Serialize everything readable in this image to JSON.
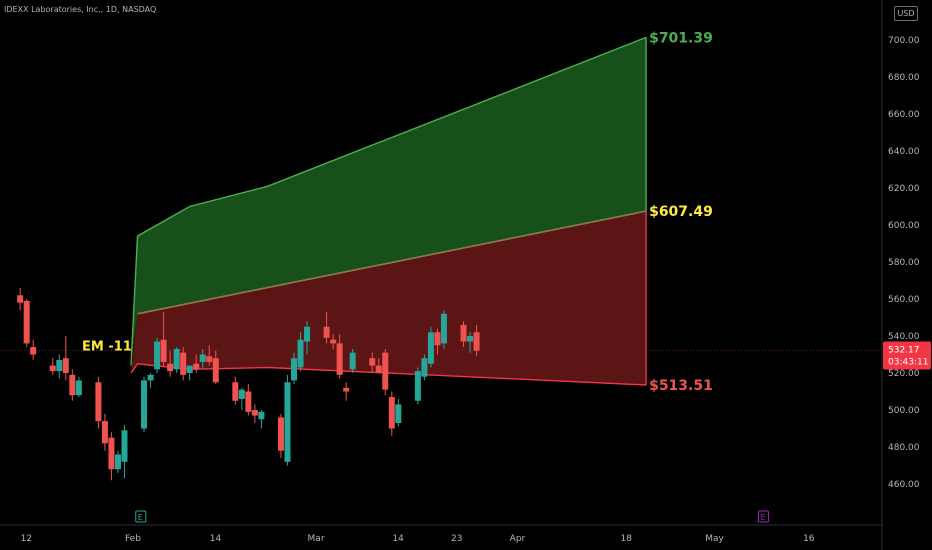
{
  "header": {
    "title": "IDEXX Laboratories, Inc., 1D, NASDAQ"
  },
  "currency_button": "USD",
  "colors": {
    "background": "#000000",
    "up_candle": "#26a69a",
    "down_candle": "#ef5350",
    "upper_band": "#4caf50",
    "lower_band": "#f23645",
    "axis_text": "#b2b5be",
    "price_tag": "#f23645",
    "em_label": "#ffeb3b"
  },
  "annotations": {
    "em_label": "EM -11",
    "upper_target": "$701.39",
    "mid_target": "$607.49",
    "lower_target": "$513.51"
  },
  "price_tag": {
    "value": "532.17",
    "countdown": "03:43:11"
  },
  "event_markers": [
    "E",
    "E"
  ],
  "chart_data": {
    "type": "candlestick",
    "title": "IDEXX Laboratories, Inc., 1D, NASDAQ",
    "ylim": [
      447,
      720
    ],
    "y_ticks": [
      460,
      480,
      500,
      520,
      540,
      560,
      580,
      600,
      620,
      640,
      660,
      680,
      700
    ],
    "y_tick_labels": [
      "460.00",
      "480.00",
      "500.00",
      "520.00",
      "540.00",
      "560.00",
      "580.00",
      "600.00",
      "620.00",
      "640.00",
      "660.00",
      "680.00",
      "700.00"
    ],
    "x_ticks": [
      {
        "label": "12",
        "day": -16
      },
      {
        "label": "Feb",
        "day": 0
      },
      {
        "label": "14",
        "day": 13
      },
      {
        "label": "Mar",
        "day": 28
      },
      {
        "label": "14",
        "day": 41
      },
      {
        "label": "23",
        "day": 50
      },
      {
        "label": "Apr",
        "day": 59
      },
      {
        "label": "18",
        "day": 76
      },
      {
        "label": "May",
        "day": 89
      },
      {
        "label": "16",
        "day": 104
      }
    ],
    "candles": [
      {
        "day": -17,
        "o": 562,
        "h": 566,
        "l": 554,
        "c": 558
      },
      {
        "day": -16,
        "o": 559,
        "h": 560,
        "l": 534,
        "c": 536
      },
      {
        "day": -15,
        "o": 534,
        "h": 538,
        "l": 527,
        "c": 530
      },
      {
        "day": -12,
        "o": 524,
        "h": 528,
        "l": 519,
        "c": 521
      },
      {
        "day": -11,
        "o": 521,
        "h": 530,
        "l": 517,
        "c": 527
      },
      {
        "day": -10,
        "o": 528,
        "h": 540,
        "l": 516,
        "c": 520
      },
      {
        "day": -9,
        "o": 519,
        "h": 522,
        "l": 505,
        "c": 508
      },
      {
        "day": -8,
        "o": 508,
        "h": 518,
        "l": 507,
        "c": 516
      },
      {
        "day": -5,
        "o": 515,
        "h": 518,
        "l": 490,
        "c": 494
      },
      {
        "day": -4,
        "o": 494,
        "h": 498,
        "l": 478,
        "c": 482
      },
      {
        "day": -3,
        "o": 485,
        "h": 488,
        "l": 462,
        "c": 468
      },
      {
        "day": -2,
        "o": 468,
        "h": 478,
        "l": 466,
        "c": 476
      },
      {
        "day": -1,
        "o": 472,
        "h": 492,
        "l": 463,
        "c": 489
      },
      {
        "day": 2,
        "o": 490,
        "h": 518,
        "l": 488,
        "c": 516
      },
      {
        "day": 3,
        "o": 516,
        "h": 520,
        "l": 512,
        "c": 519
      },
      {
        "day": 4,
        "o": 522,
        "h": 539,
        "l": 520,
        "c": 537
      },
      {
        "day": 5,
        "o": 538,
        "h": 553,
        "l": 524,
        "c": 526
      },
      {
        "day": 6,
        "o": 525,
        "h": 532,
        "l": 518,
        "c": 521
      },
      {
        "day": 7,
        "o": 522,
        "h": 534,
        "l": 520,
        "c": 533
      },
      {
        "day": 8,
        "o": 531,
        "h": 534,
        "l": 516,
        "c": 519
      },
      {
        "day": 9,
        "o": 520,
        "h": 524,
        "l": 516,
        "c": 524
      },
      {
        "day": 10,
        "o": 525,
        "h": 530,
        "l": 520,
        "c": 522
      },
      {
        "day": 11,
        "o": 526,
        "h": 533,
        "l": 522,
        "c": 530
      },
      {
        "day": 12,
        "o": 529,
        "h": 535,
        "l": 524,
        "c": 526
      },
      {
        "day": 13,
        "o": 528,
        "h": 532,
        "l": 514,
        "c": 515
      },
      {
        "day": 16,
        "o": 515,
        "h": 518,
        "l": 503,
        "c": 505
      },
      {
        "day": 17,
        "o": 506,
        "h": 512,
        "l": 500,
        "c": 511
      },
      {
        "day": 18,
        "o": 510,
        "h": 514,
        "l": 497,
        "c": 499
      },
      {
        "day": 19,
        "o": 500,
        "h": 503,
        "l": 493,
        "c": 497
      },
      {
        "day": 20,
        "o": 495,
        "h": 500,
        "l": 490,
        "c": 499
      },
      {
        "day": 23,
        "o": 496,
        "h": 498,
        "l": 474,
        "c": 478
      },
      {
        "day": 24,
        "o": 472,
        "h": 519,
        "l": 470,
        "c": 515
      },
      {
        "day": 25,
        "o": 516,
        "h": 531,
        "l": 514,
        "c": 528
      },
      {
        "day": 26,
        "o": 523,
        "h": 542,
        "l": 521,
        "c": 538
      },
      {
        "day": 27,
        "o": 537,
        "h": 548,
        "l": 530,
        "c": 545
      },
      {
        "day": 30,
        "o": 545,
        "h": 553,
        "l": 536,
        "c": 539
      },
      {
        "day": 31,
        "o": 538,
        "h": 541,
        "l": 533,
        "c": 536
      },
      {
        "day": 32,
        "o": 536,
        "h": 541,
        "l": 517,
        "c": 519
      },
      {
        "day": 33,
        "o": 512,
        "h": 515,
        "l": 505,
        "c": 510
      },
      {
        "day": 34,
        "o": 522,
        "h": 533,
        "l": 520,
        "c": 531
      },
      {
        "day": 37,
        "o": 528,
        "h": 531,
        "l": 520,
        "c": 524
      },
      {
        "day": 38,
        "o": 524,
        "h": 528,
        "l": 520,
        "c": 520
      },
      {
        "day": 39,
        "o": 531,
        "h": 533,
        "l": 508,
        "c": 511
      },
      {
        "day": 40,
        "o": 507,
        "h": 510,
        "l": 486,
        "c": 490
      },
      {
        "day": 41,
        "o": 493,
        "h": 506,
        "l": 491,
        "c": 503
      },
      {
        "day": 44,
        "o": 505,
        "h": 523,
        "l": 503,
        "c": 521
      },
      {
        "day": 45,
        "o": 518,
        "h": 530,
        "l": 516,
        "c": 528
      },
      {
        "day": 46,
        "o": 525,
        "h": 545,
        "l": 523,
        "c": 542
      },
      {
        "day": 47,
        "o": 542,
        "h": 544,
        "l": 530,
        "c": 535
      },
      {
        "day": 48,
        "o": 536,
        "h": 554,
        "l": 533,
        "c": 552
      },
      {
        "day": 51,
        "o": 546,
        "h": 548,
        "l": 534,
        "c": 537
      },
      {
        "day": 52,
        "o": 537,
        "h": 542,
        "l": 531,
        "c": 540
      },
      {
        "day": 53,
        "o": 542,
        "h": 546,
        "l": 529,
        "c": 532
      }
    ],
    "upper_band": [
      [
        0,
        524
      ],
      [
        1,
        594
      ],
      [
        9,
        610
      ],
      [
        21,
        621
      ],
      [
        79,
        701.39
      ]
    ],
    "mid_band": [
      [
        1,
        552
      ],
      [
        79,
        607.49
      ]
    ],
    "lower_band": [
      [
        0,
        520
      ],
      [
        1,
        525
      ],
      [
        9,
        522
      ],
      [
        21,
        523
      ],
      [
        79,
        513.51
      ]
    ]
  }
}
